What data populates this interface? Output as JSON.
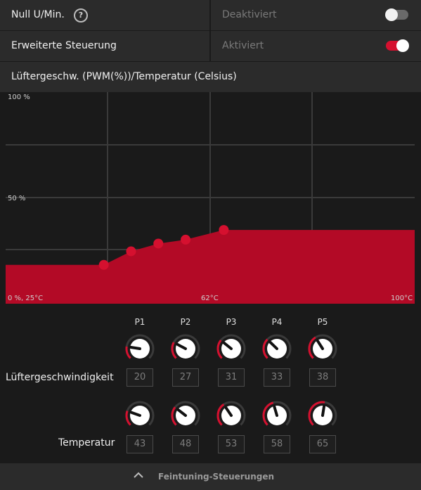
{
  "zero_rpm": {
    "label": "Null U/Min.",
    "help_icon": "question-circle-icon",
    "status": "Deaktiviert",
    "toggle_state": "off"
  },
  "advanced_control": {
    "label": "Erweiterte Steuerung",
    "status": "Aktiviert",
    "toggle_state": "on"
  },
  "curve_title": "Lüftergeschw. (PWM(%))/Temperatur (Celsius)",
  "colors": {
    "accent": "#d5102f",
    "fill": "#b30a26",
    "grid": "#3a3a3a",
    "panel": "#2b2b2b",
    "background": "#1a1a1a"
  },
  "chart_data": {
    "type": "area",
    "x_min": 25,
    "x_max": 100,
    "y_min": 0,
    "y_max": 100,
    "xlabel_left": "0 %, 25°C",
    "xlabel_mid": "62°C",
    "xlabel_right": "100°C",
    "ylabel_top": "100 %",
    "ylabel_mid": "50 %",
    "grid": true,
    "points": [
      {
        "x": 43,
        "y": 20
      },
      {
        "x": 48,
        "y": 27
      },
      {
        "x": 53,
        "y": 31
      },
      {
        "x": 58,
        "y": 33
      },
      {
        "x": 65,
        "y": 38
      }
    ]
  },
  "tuning": {
    "columns": [
      "P1",
      "P2",
      "P3",
      "P4",
      "P5"
    ],
    "fan_speed_label": "Lüftergeschwindigkeit",
    "temperature_label": "Temperatur",
    "fan_speed_values": [
      "20",
      "27",
      "31",
      "33",
      "38"
    ],
    "temperature_values": [
      "43",
      "48",
      "53",
      "58",
      "65"
    ]
  },
  "footer": {
    "label": "Feintuning-Steuerungen",
    "icon": "chevron-up-icon"
  }
}
